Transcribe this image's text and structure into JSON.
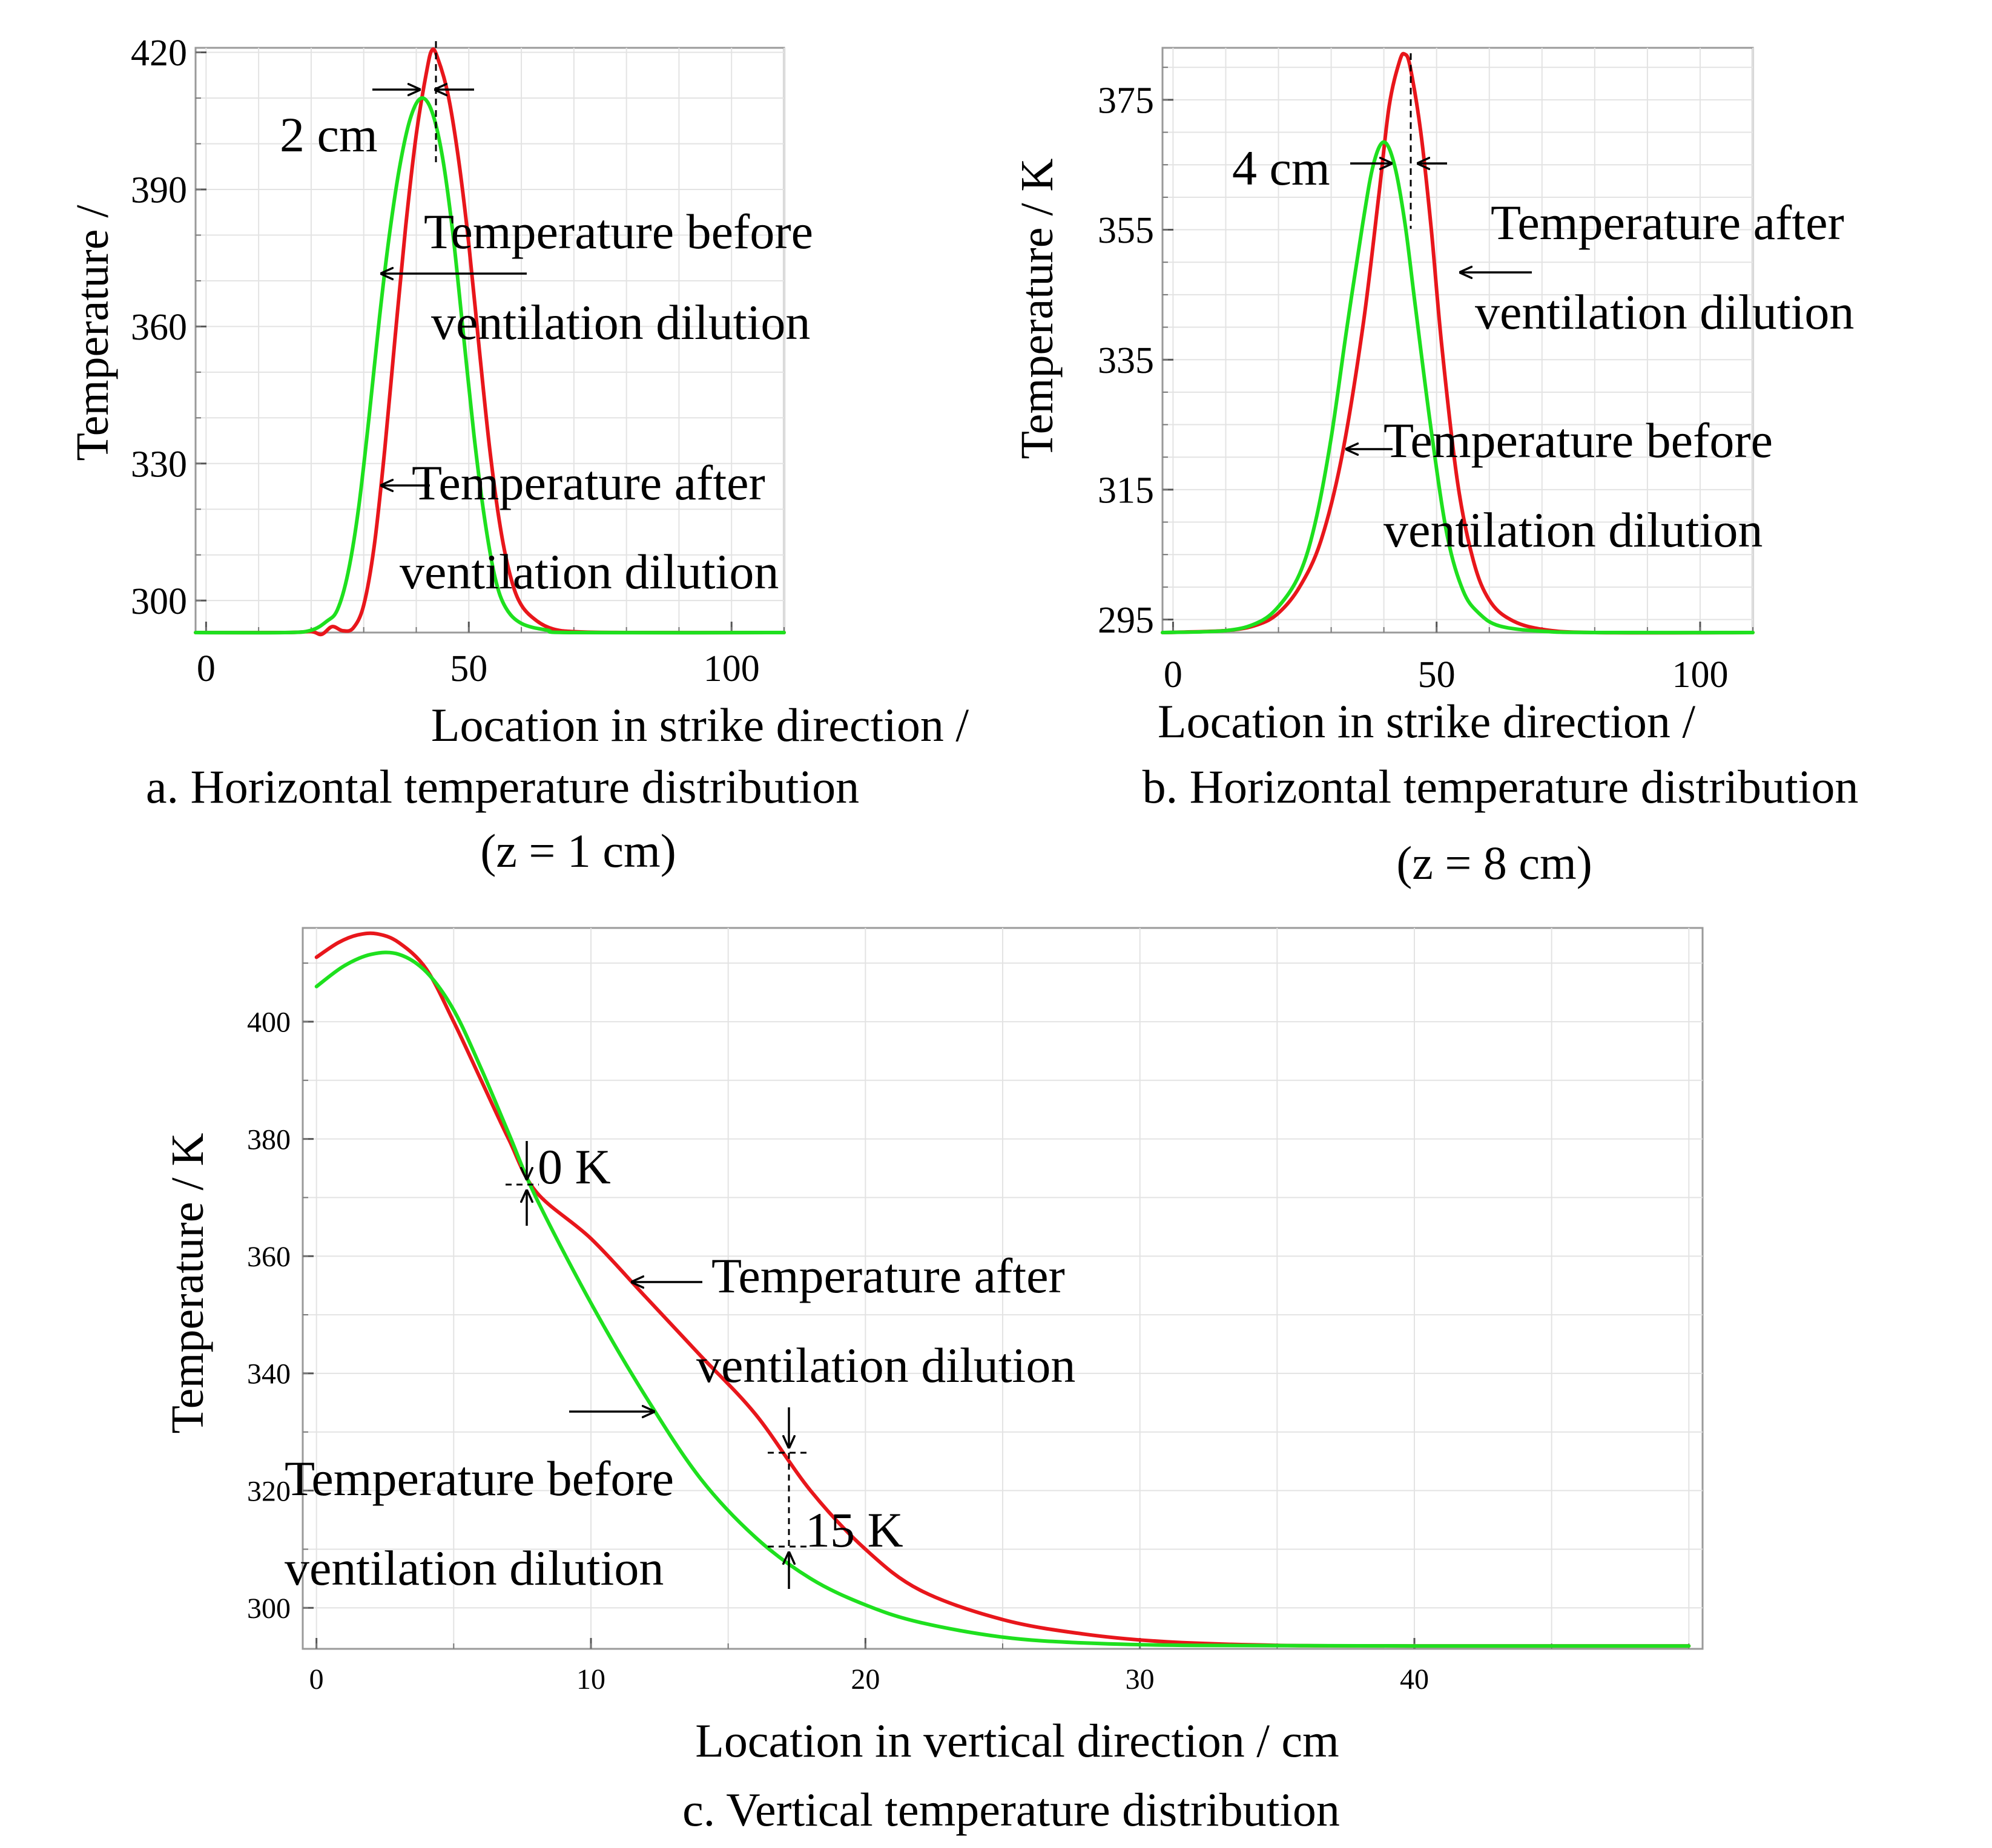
{
  "chart_data": [
    {
      "id": "a",
      "type": "line",
      "ylabel": "Temperature /",
      "xlabel": "Location in strike direction /",
      "caption_line1": "a. Horizontal temperature distribution",
      "caption_line2": "(z = 1 cm)",
      "xlim": [
        -2,
        110
      ],
      "ylim": [
        293,
        421
      ],
      "xticks": [
        0,
        50,
        100
      ],
      "yticks": [
        300,
        330,
        360,
        390,
        420
      ],
      "grid": true,
      "series": [
        {
          "name": "Temperature after ventilation dilution",
          "color": "#e8161b",
          "points": [
            [
              -2,
              293
            ],
            [
              15,
              293
            ],
            [
              20,
              293.2
            ],
            [
              22,
              292.6
            ],
            [
              24,
              294.3
            ],
            [
              26,
              293.4
            ],
            [
              28,
              294
            ],
            [
              30,
              299
            ],
            [
              32,
              312
            ],
            [
              34,
              333
            ],
            [
              36,
              358
            ],
            [
              38,
              382
            ],
            [
              40,
              402
            ],
            [
              42,
              416
            ],
            [
              43,
              420.5
            ],
            [
              44,
              419
            ],
            [
              46,
              411
            ],
            [
              48,
              397
            ],
            [
              50,
              378
            ],
            [
              52,
              355
            ],
            [
              54,
              333
            ],
            [
              56,
              316
            ],
            [
              58,
              305
            ],
            [
              60,
              299
            ],
            [
              63,
              295.5
            ],
            [
              66,
              293.8
            ],
            [
              70,
              293.2
            ],
            [
              80,
              293
            ],
            [
              110,
              293
            ]
          ]
        },
        {
          "name": "Temperature before ventilation dilution",
          "color": "#1ee01e",
          "points": [
            [
              -2,
              293
            ],
            [
              15,
              293
            ],
            [
              20,
              293.5
            ],
            [
              23,
              295.5
            ],
            [
              25,
              298
            ],
            [
              27,
              306
            ],
            [
              29,
              320
            ],
            [
              31,
              340
            ],
            [
              33,
              362
            ],
            [
              35,
              381
            ],
            [
              37,
              396
            ],
            [
              39,
              406
            ],
            [
              41,
              410
            ],
            [
              43,
              407
            ],
            [
              45,
              397
            ],
            [
              47,
              380
            ],
            [
              49,
              358
            ],
            [
              51,
              336
            ],
            [
              53,
              318
            ],
            [
              55,
              305
            ],
            [
              57,
              298.5
            ],
            [
              60,
              295
            ],
            [
              65,
              293.5
            ],
            [
              70,
              293
            ],
            [
              110,
              293
            ]
          ]
        }
      ],
      "annotations": {
        "offset_label": "2 cm",
        "before_label_line1": "Temperature before",
        "before_label_line2": "ventilation dilution",
        "after_label_line1": "Temperature after",
        "after_label_line2": "ventilation dilution"
      }
    },
    {
      "id": "b",
      "type": "line",
      "ylabel": "Temperature / K",
      "xlabel": "Location in strike direction /",
      "caption_line1": "b. Horizontal temperature distribution",
      "caption_line2": "(z = 8 cm)",
      "xlim": [
        -2,
        110
      ],
      "ylim": [
        293,
        383
      ],
      "xticks": [
        0,
        50,
        100
      ],
      "yticks": [
        295,
        315,
        335,
        355,
        375
      ],
      "grid": true,
      "series": [
        {
          "name": "Temperature after ventilation dilution",
          "color": "#e8161b",
          "points": [
            [
              -2,
              293
            ],
            [
              10,
              293.3
            ],
            [
              16,
              294.2
            ],
            [
              20,
              296
            ],
            [
              24,
              300
            ],
            [
              28,
              307
            ],
            [
              32,
              320
            ],
            [
              36,
              340
            ],
            [
              39,
              360
            ],
            [
              41,
              374
            ],
            [
              43,
              381
            ],
            [
              44,
              382
            ],
            [
              45,
              380
            ],
            [
              47,
              370
            ],
            [
              49,
              355
            ],
            [
              51,
              337
            ],
            [
              54,
              316
            ],
            [
              57,
              304
            ],
            [
              60,
              298
            ],
            [
              64,
              295
            ],
            [
              70,
              293.5
            ],
            [
              80,
              293
            ],
            [
              110,
              293
            ]
          ]
        },
        {
          "name": "Temperature before ventilation dilution",
          "color": "#1ee01e",
          "points": [
            [
              -2,
              293
            ],
            [
              10,
              293.3
            ],
            [
              16,
              294.5
            ],
            [
              20,
              297
            ],
            [
              24,
              302
            ],
            [
              27,
              310
            ],
            [
              30,
              323
            ],
            [
              33,
              340
            ],
            [
              36,
              356
            ],
            [
              38,
              365
            ],
            [
              40,
              368.5
            ],
            [
              42,
              365
            ],
            [
              44,
              356
            ],
            [
              46,
              343
            ],
            [
              49,
              324
            ],
            [
              52,
              308
            ],
            [
              55,
              299.5
            ],
            [
              58,
              296
            ],
            [
              62,
              294
            ],
            [
              70,
              293.2
            ],
            [
              80,
              293
            ],
            [
              110,
              293
            ]
          ]
        }
      ],
      "annotations": {
        "offset_label": "4 cm",
        "after_label_line1": "Temperature after",
        "after_label_line2": "ventilation dilution",
        "before_label_line1": "Temperature before",
        "before_label_line2": "ventilation dilution"
      }
    },
    {
      "id": "c",
      "type": "line",
      "ylabel": "Temperature / K",
      "xlabel": "Location in vertical direction / cm",
      "caption_line1": "c. Vertical temperature distribution",
      "xlim": [
        -0.5,
        50.5
      ],
      "ylim": [
        293,
        416
      ],
      "xticks": [
        0,
        10,
        20,
        30,
        40
      ],
      "yticks": [
        300,
        320,
        340,
        360,
        380,
        400
      ],
      "grid": true,
      "series": [
        {
          "name": "Temperature after ventilation dilution",
          "color": "#e8161b",
          "points": [
            [
              0,
              411
            ],
            [
              0.8,
              413.5
            ],
            [
              1.5,
              414.8
            ],
            [
              2.2,
              415
            ],
            [
              3,
              413.5
            ],
            [
              4,
              409
            ],
            [
              5,
              400
            ],
            [
              6,
              390
            ],
            [
              7,
              380
            ],
            [
              8,
              371
            ],
            [
              10,
              363
            ],
            [
              12,
              353
            ],
            [
              14,
              343
            ],
            [
              16,
              333
            ],
            [
              18,
              320
            ],
            [
              20,
              310
            ],
            [
              22,
              303
            ],
            [
              25,
              298
            ],
            [
              28,
              295.5
            ],
            [
              31,
              294.2
            ],
            [
              35,
              293.6
            ],
            [
              40,
              293.5
            ],
            [
              50,
              293.5
            ]
          ]
        },
        {
          "name": "Temperature before ventilation dilution",
          "color": "#1ee01e",
          "points": [
            [
              0,
              406
            ],
            [
              1,
              409.5
            ],
            [
              2,
              411.5
            ],
            [
              3,
              411.5
            ],
            [
              4,
              408.5
            ],
            [
              5,
              402
            ],
            [
              6,
              392
            ],
            [
              7,
              381
            ],
            [
              8,
              370
            ],
            [
              10,
              352
            ],
            [
              12,
              336
            ],
            [
              14,
              322
            ],
            [
              16,
              312
            ],
            [
              18,
              305
            ],
            [
              20,
              300.5
            ],
            [
              22,
              297.5
            ],
            [
              25,
              295
            ],
            [
              28,
              294
            ],
            [
              32,
              293.6
            ],
            [
              40,
              293.5
            ],
            [
              50,
              293.5
            ]
          ]
        }
      ],
      "annotations": {
        "delta_top_label": "0 K",
        "delta_bottom_label": "15 K",
        "after_label_line1": "Temperature after",
        "after_label_line2": "ventilation dilution",
        "before_label_line1": "Temperature before",
        "before_label_line2": "ventilation dilution"
      }
    }
  ]
}
